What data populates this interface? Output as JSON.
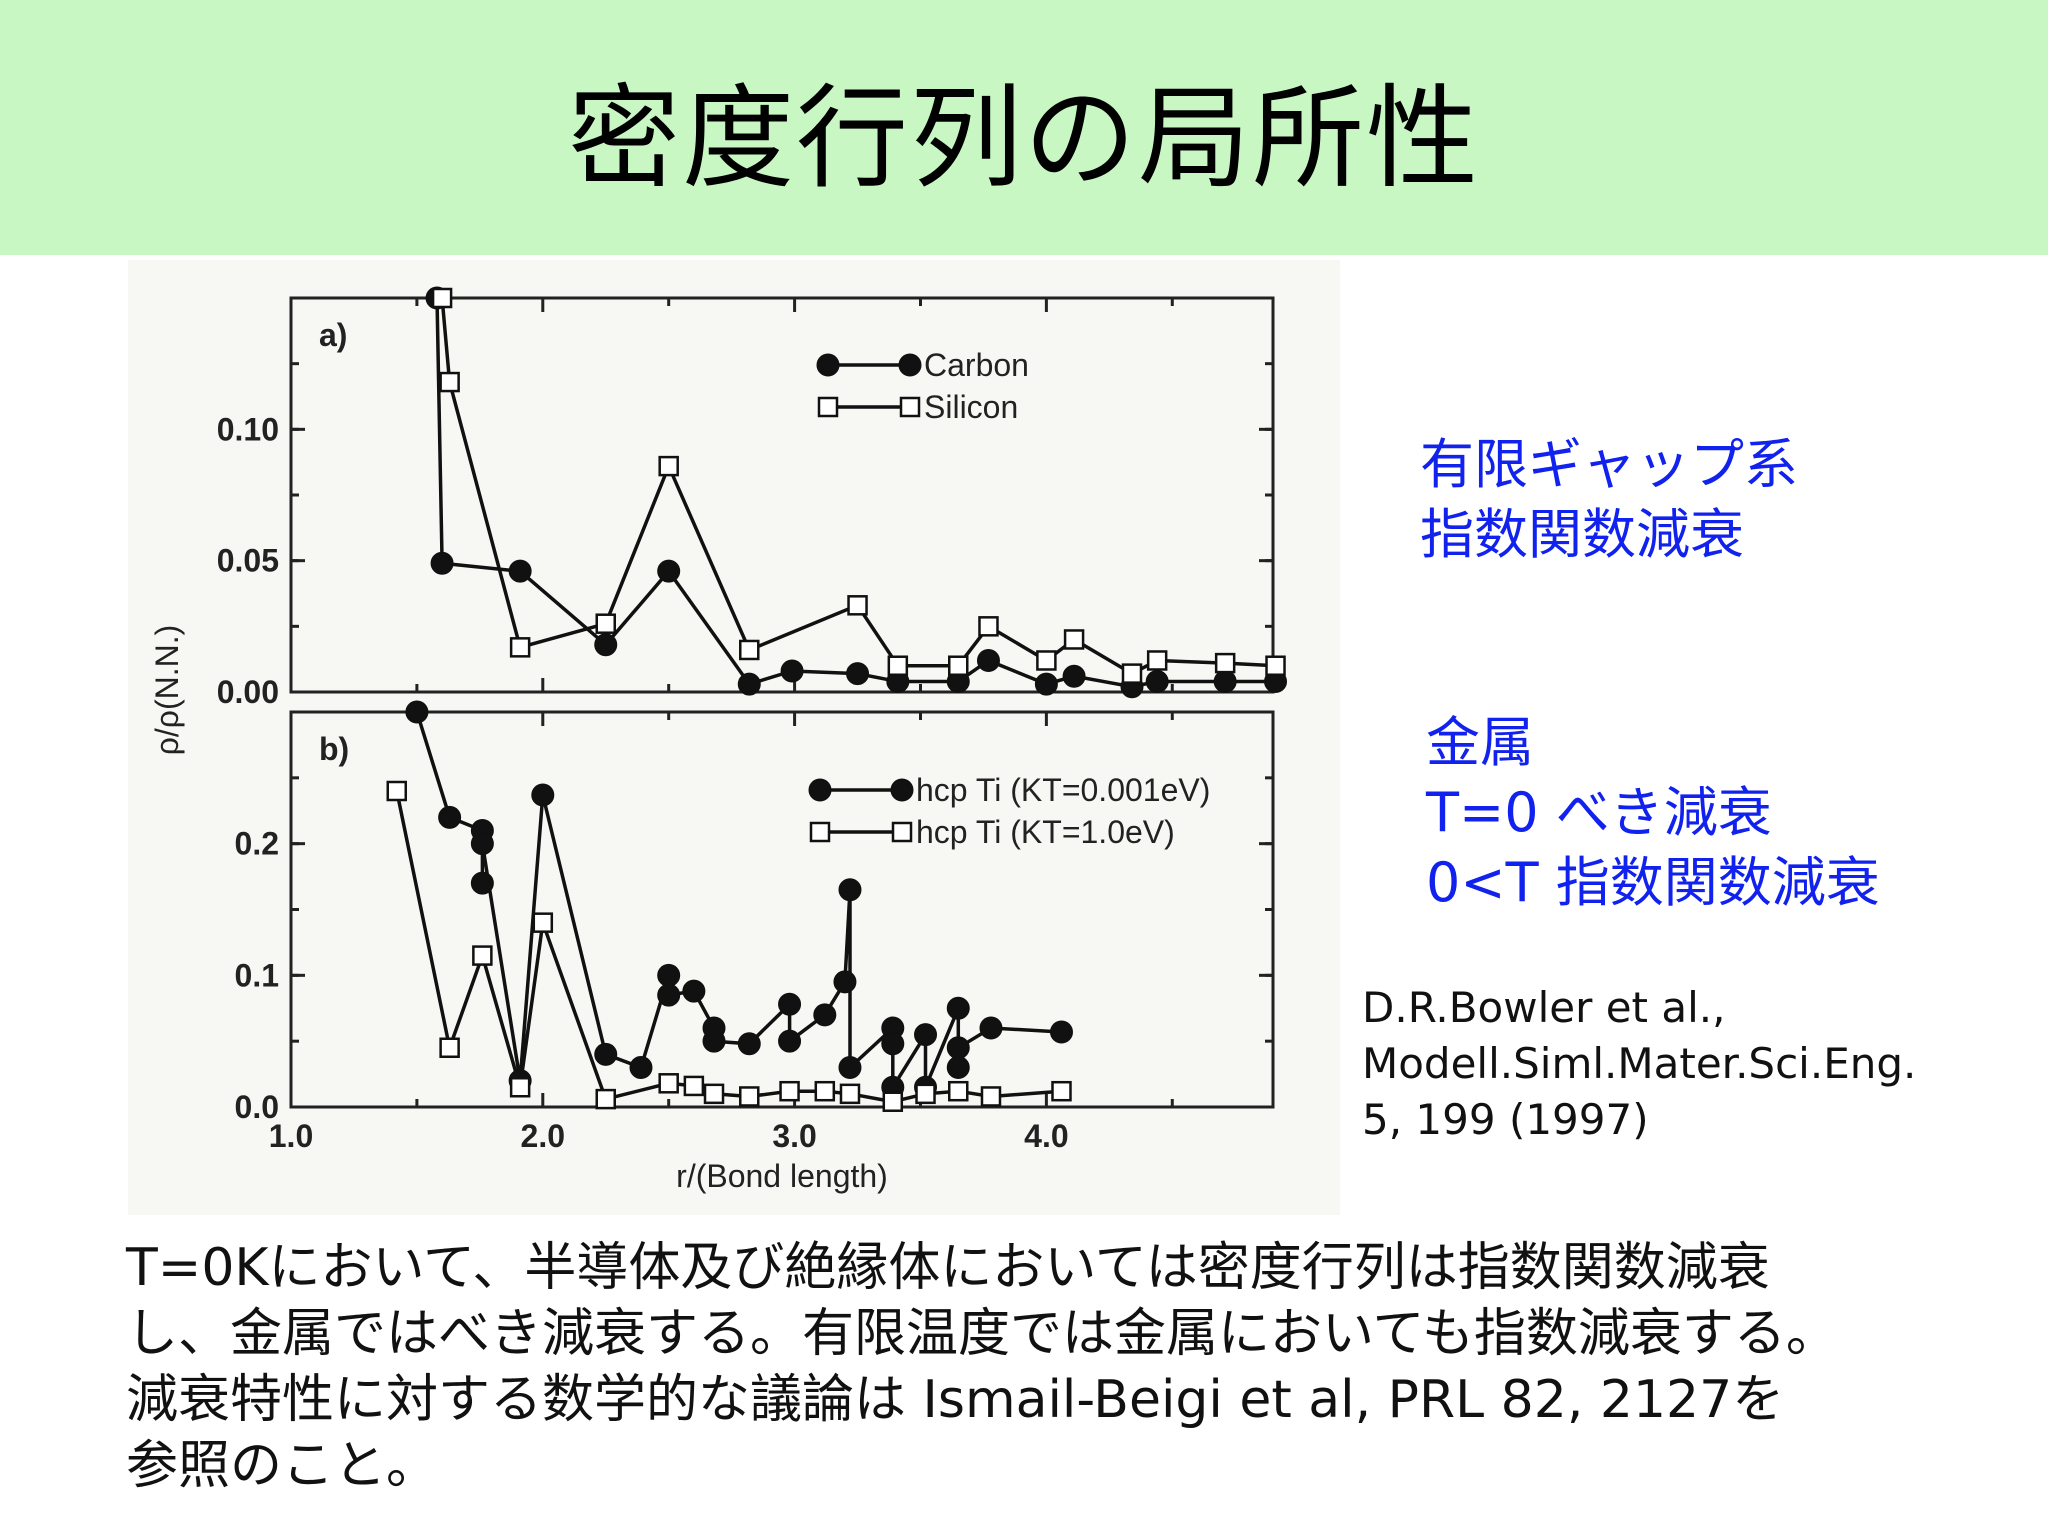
{
  "slide": {
    "title": "密度行列の局所性",
    "colors": {
      "title_bg": "#c8f7c4",
      "note_text": "#1122ee"
    }
  },
  "notes": {
    "gap_lines": [
      "有限ギャップ系",
      "指数関数減衰"
    ],
    "metal_lines": [
      "金属",
      "T=0 べき減衰",
      "0<T 指数関数減衰"
    ]
  },
  "citation": {
    "lines": [
      "D.R.Bowler et al.,",
      "Modell.Siml.Mater.Sci.Eng.",
      "5, 199 (1997)"
    ]
  },
  "body_text": {
    "lines": [
      "T=0Kにおいて、半導体及び絶縁体においては密度行列は指数関数減衰",
      "し、金属ではべき減衰する。有限温度では金属においても指数減衰する。",
      "減衰特性に対する数学的な議論は Ismail-Beigi et al, PRL 82, 2127を",
      "参照のこと。"
    ]
  },
  "chart_data": [
    {
      "panel": "a)",
      "type": "line",
      "xlabel": "r/(Bond length)",
      "ylabel": "ρ/ρ(N.N.)",
      "xlim": [
        1.0,
        4.9
      ],
      "ylim": [
        0.0,
        0.15
      ],
      "yticks": [
        "0.00",
        "0.05",
        "0.10"
      ],
      "legend_position": "top-right",
      "series": [
        {
          "name": "Carbon",
          "marker": "filled-circle",
          "x": [
            1.58,
            1.6,
            1.91,
            2.25,
            2.5,
            2.82,
            2.99,
            3.25,
            3.41,
            3.65,
            3.77,
            4.0,
            4.11,
            4.34,
            4.44,
            4.71,
            4.91
          ],
          "y": [
            0.15,
            0.049,
            0.046,
            0.018,
            0.046,
            0.003,
            0.008,
            0.007,
            0.004,
            0.004,
            0.012,
            0.003,
            0.006,
            0.002,
            0.004,
            0.004,
            0.004
          ]
        },
        {
          "name": "Silicon",
          "marker": "open-square",
          "x": [
            1.6,
            1.63,
            1.91,
            2.25,
            2.5,
            2.82,
            3.25,
            3.41,
            3.65,
            3.77,
            4.0,
            4.11,
            4.34,
            4.44,
            4.71,
            4.91
          ],
          "y": [
            0.15,
            0.118,
            0.017,
            0.026,
            0.086,
            0.016,
            0.033,
            0.01,
            0.01,
            0.025,
            0.012,
            0.02,
            0.007,
            0.012,
            0.011,
            0.01
          ]
        }
      ]
    },
    {
      "panel": "b)",
      "type": "line",
      "xlabel": "r/(Bond length)",
      "ylabel": "",
      "xlim": [
        1.0,
        4.9
      ],
      "ylim": [
        0.0,
        0.3
      ],
      "xticks": [
        "1.0",
        "2.0",
        "3.0",
        "4.0"
      ],
      "yticks": [
        "0.0",
        "0.1",
        "0.2"
      ],
      "legend_position": "top-right",
      "series": [
        {
          "name": "hcp Ti (KT=0.001eV)",
          "marker": "filled-circle",
          "x": [
            1.5,
            1.63,
            1.76,
            1.76,
            1.76,
            1.91,
            2.0,
            2.25,
            2.39,
            2.5,
            2.5,
            2.6,
            2.68,
            2.68,
            2.82,
            2.98,
            2.98,
            3.12,
            3.2,
            3.22,
            3.22,
            3.39,
            3.39,
            3.39,
            3.52,
            3.52,
            3.65,
            3.65,
            3.65,
            3.78,
            4.06
          ],
          "y": [
            0.3,
            0.22,
            0.21,
            0.17,
            0.2,
            0.02,
            0.237,
            0.04,
            0.03,
            0.1,
            0.085,
            0.088,
            0.06,
            0.05,
            0.048,
            0.078,
            0.05,
            0.07,
            0.095,
            0.165,
            0.03,
            0.06,
            0.048,
            0.015,
            0.055,
            0.015,
            0.075,
            0.03,
            0.045,
            0.06,
            0.057
          ]
        },
        {
          "name": "hcp Ti (KT=1.0eV)",
          "marker": "open-square",
          "x": [
            1.42,
            1.63,
            1.76,
            1.91,
            2.0,
            2.25,
            2.5,
            2.6,
            2.68,
            2.82,
            2.98,
            3.12,
            3.22,
            3.39,
            3.52,
            3.65,
            3.78,
            4.06
          ],
          "y": [
            0.24,
            0.045,
            0.115,
            0.015,
            0.14,
            0.006,
            0.018,
            0.016,
            0.01,
            0.008,
            0.012,
            0.012,
            0.01,
            0.004,
            0.01,
            0.012,
            0.008,
            0.012
          ]
        }
      ]
    }
  ]
}
